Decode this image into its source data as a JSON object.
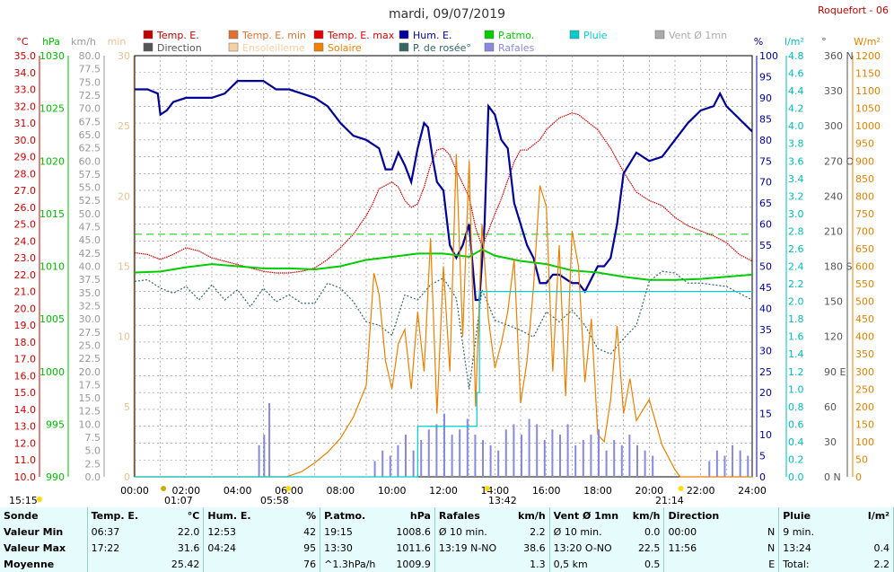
{
  "title": "mardi, 09/07/2019",
  "site": "Roquefort - 06",
  "legend": [
    {
      "label": "Temp. E.",
      "color": "#c00000"
    },
    {
      "label": "Temp. E. min",
      "color": "#e07030"
    },
    {
      "label": "Temp. E. max",
      "color": "#e00000"
    },
    {
      "label": "Hum. E.",
      "color": "#000099"
    },
    {
      "label": "P.atmo.",
      "color": "#00cc00"
    },
    {
      "label": "Pluie",
      "color": "#00cccc"
    },
    {
      "label": "Vent Ø 1mn",
      "color": "#aaaaaa"
    },
    {
      "label": "Direction",
      "color": "#555555"
    },
    {
      "label": "Ensoleilleme",
      "color": "#f5d0a0"
    },
    {
      "label": "Solaire",
      "color": "#f08000"
    },
    {
      "label": "P. de rosée°",
      "color": "#336666"
    },
    {
      "label": "Rafales",
      "color": "#8888dd"
    }
  ],
  "axis_headers": {
    "temp": "°C",
    "press": "hPa",
    "wind": "km/h",
    "min": "min",
    "hum": "%",
    "rain": "l/m²",
    "dir": "°",
    "solar": "W/m²"
  },
  "axes": {
    "temp": {
      "color": "#cc0000",
      "ticks": [
        "35.0",
        "34.0",
        "33.0",
        "32.0",
        "31.0",
        "30.0",
        "29.0",
        "28.0",
        "27.0",
        "26.0",
        "25.0",
        "24.0",
        "23.0",
        "22.0",
        "21.0",
        "20.0",
        "19.0",
        "18.0",
        "17.0",
        "16.0",
        "15.0",
        "14.0",
        "13.0",
        "12.0",
        "11.0",
        "10.0"
      ]
    },
    "press": {
      "color": "#00bb00",
      "ticks": [
        "1030",
        "1025",
        "1020",
        "1015",
        "1010",
        "1005",
        "1000",
        "995",
        "990"
      ]
    },
    "wind": {
      "color": "#999999",
      "ticks": [
        "80.0",
        "77.5",
        "75.0",
        "72.5",
        "70.0",
        "67.5",
        "65.0",
        "62.5",
        "60.0",
        "57.5",
        "55.0",
        "52.5",
        "50.0",
        "47.5",
        "45.0",
        "42.5",
        "40.0",
        "37.5",
        "35.0",
        "32.5",
        "30.0",
        "27.5",
        "25.0",
        "22.5",
        "20.0",
        "17.5",
        "15.0",
        "12.5",
        "10.0",
        "7.5",
        "5.0",
        "2.5",
        "0.0"
      ]
    },
    "min": {
      "color": "#e8c090",
      "ticks": [
        "30",
        "25",
        "20",
        "15",
        "10",
        "5",
        "0"
      ]
    },
    "hum": {
      "color": "#000099",
      "ticks": [
        "100",
        "95",
        "90",
        "85",
        "80",
        "75",
        "70",
        "65",
        "60",
        "55",
        "50",
        "45",
        "40",
        "35",
        "30",
        "25",
        "20",
        "15",
        "10",
        "5",
        "0"
      ]
    },
    "rain": {
      "color": "#00bbbb",
      "ticks": [
        "4.8",
        "4.6",
        "4.4",
        "4.2",
        "4.0",
        "3.8",
        "3.6",
        "3.4",
        "3.2",
        "3.0",
        "2.8",
        "2.6",
        "2.4",
        "2.2",
        "2.0",
        "1.8",
        "1.6",
        "1.4",
        "1.2",
        "1.0",
        "0.8",
        "0.6",
        "0.4",
        "0.2",
        "0.0"
      ]
    },
    "dir": {
      "color": "#555555",
      "ticks": [
        "360 N",
        "330",
        "300",
        "270 O",
        "240",
        "210",
        "180 S",
        "150",
        "120",
        "90 E",
        "60",
        "30",
        "0 N"
      ]
    },
    "solar": {
      "color": "#e08000",
      "ticks": [
        "1200",
        "1150",
        "1100",
        "1050",
        "1000",
        "950",
        "900",
        "850",
        "800",
        "750",
        "700",
        "650",
        "600",
        "550",
        "500",
        "450",
        "400",
        "350",
        "300",
        "250",
        "200",
        "150",
        "100",
        "50",
        "0"
      ]
    }
  },
  "x_ticks": [
    "00:00",
    "02:00",
    "04:00",
    "06:00",
    "08:00",
    "10:00",
    "12:00",
    "14:00",
    "16:00",
    "18:00",
    "20:00",
    "22:00",
    "24:00"
  ],
  "markers": {
    "clock": "15:15",
    "moonrise": "01:07",
    "sunrise": "05:58",
    "suntop": "13:42",
    "sunset": "21:14"
  },
  "chart_data": {
    "type": "line",
    "x_unit": "hour",
    "xlim": [
      0,
      24
    ],
    "series": [
      {
        "name": "Temp. E.",
        "unit": "°C",
        "ylim": [
          10,
          35
        ],
        "color": "#cc0000",
        "x": [
          0,
          0.5,
          1,
          1.5,
          2,
          2.5,
          3,
          3.5,
          4,
          4.5,
          5,
          5.5,
          6,
          6.5,
          7,
          7.5,
          8,
          8.5,
          9,
          9.25,
          9.5,
          9.75,
          10,
          10.25,
          10.5,
          10.75,
          11,
          11.25,
          11.5,
          11.75,
          12,
          12.25,
          12.5,
          12.75,
          13,
          13.25,
          13.5,
          13.75,
          14,
          14.25,
          14.5,
          14.75,
          15,
          15.25,
          15.5,
          15.75,
          16,
          16.5,
          17,
          17.25,
          17.5,
          18,
          18.5,
          19,
          19.5,
          20,
          20.5,
          21,
          21.5,
          22,
          22.5,
          23,
          23.5,
          24
        ],
        "y": [
          23.3,
          23.2,
          22.9,
          23.2,
          23.6,
          23.4,
          23.0,
          22.8,
          22.6,
          22.4,
          22.2,
          22.1,
          22.1,
          22.2,
          22.4,
          22.9,
          23.6,
          24.4,
          25.5,
          26.2,
          27.1,
          27.3,
          27.5,
          27.2,
          26.4,
          26.0,
          26.2,
          27.2,
          28.5,
          29.4,
          29.5,
          29.1,
          28.2,
          27.4,
          26.6,
          24.8,
          23.7,
          24.6,
          25.6,
          26.5,
          27.6,
          28.7,
          29.4,
          29.4,
          29.7,
          30.0,
          30.6,
          31.3,
          31.6,
          31.5,
          31.2,
          30.6,
          29.5,
          28.1,
          26.9,
          26.4,
          26.1,
          25.4,
          24.9,
          24.6,
          24.3,
          23.9,
          23.2,
          22.8
        ]
      },
      {
        "name": "Hum. E.",
        "unit": "%",
        "ylim": [
          0,
          100
        ],
        "color": "#000099",
        "x": [
          0,
          0.5,
          0.9,
          1.0,
          1.25,
          1.5,
          2,
          2.5,
          3,
          3.5,
          4,
          4.5,
          5,
          5.5,
          6,
          6.5,
          7,
          7.5,
          8,
          8.5,
          9,
          9.5,
          9.75,
          10,
          10.25,
          10.5,
          10.75,
          11,
          11.25,
          11.4,
          11.6,
          11.75,
          12,
          12.25,
          12.5,
          12.75,
          13,
          13.25,
          13.4,
          13.6,
          13.75,
          14,
          14.25,
          14.5,
          14.75,
          15,
          15.25,
          15.5,
          15.75,
          16,
          16.25,
          16.5,
          16.75,
          17,
          17.25,
          17.5,
          18,
          18.25,
          18.5,
          18.75,
          19,
          19.5,
          20,
          20.5,
          21,
          21.5,
          22,
          22.5,
          22.75,
          23,
          23.5,
          24
        ],
        "y": [
          92,
          92,
          91,
          86,
          87,
          89,
          90,
          90,
          90,
          91,
          94,
          94,
          94,
          92,
          92,
          91,
          90,
          88,
          84,
          81,
          80,
          78,
          73,
          73,
          77,
          74,
          70,
          78,
          84,
          83,
          75,
          70,
          68,
          55,
          52,
          55,
          60,
          42,
          42,
          60,
          88,
          86,
          80,
          78,
          65,
          60,
          55,
          52,
          46,
          46,
          48,
          48,
          47,
          46,
          46,
          44,
          50,
          50,
          52,
          60,
          72,
          77,
          75,
          76,
          80,
          84,
          87,
          88,
          91,
          88,
          85,
          82
        ]
      },
      {
        "name": "P.atmo.",
        "unit": "hPa",
        "ylim": [
          990,
          1030
        ],
        "color": "#00cc00",
        "x": [
          0,
          1,
          2,
          3,
          4,
          5,
          6,
          7,
          8,
          9,
          10,
          11,
          12,
          13,
          13.5,
          14,
          15,
          16,
          17,
          18,
          19,
          20,
          21,
          22,
          23,
          24
        ],
        "y": [
          1009.4,
          1009.5,
          1009.9,
          1010.2,
          1010.0,
          1009.8,
          1009.8,
          1009.7,
          1010.0,
          1010.6,
          1010.9,
          1011.2,
          1011.2,
          1010.9,
          1011.6,
          1011.0,
          1010.5,
          1010.2,
          1009.6,
          1009.4,
          1009.0,
          1008.7,
          1008.7,
          1008.8,
          1009.0,
          1009.2
        ]
      },
      {
        "name": "P. de rosée°",
        "unit": "°C",
        "ylim": [
          10,
          35
        ],
        "color": "#336666",
        "x": [
          0,
          0.5,
          1,
          1.5,
          2,
          2.5,
          3,
          3.5,
          4,
          4.5,
          5,
          5.5,
          6,
          6.5,
          7,
          7.5,
          8,
          8.5,
          9,
          9.5,
          10,
          10.5,
          11,
          11.5,
          12,
          12.5,
          13,
          13.5,
          14,
          14.5,
          15,
          15.5,
          16,
          16.5,
          17,
          17.5,
          18,
          18.5,
          19,
          19.5,
          20,
          20.5,
          21,
          21.5,
          22,
          22.5,
          23,
          23.5,
          24
        ],
        "y": [
          21.6,
          21.7,
          21.2,
          20.9,
          21.3,
          20.5,
          21.4,
          20.5,
          21.1,
          20.1,
          21.2,
          20.4,
          20.8,
          20.3,
          20.3,
          21.5,
          21.2,
          20.4,
          19.2,
          19.0,
          18.4,
          20.8,
          20.5,
          21.4,
          21.8,
          20.6,
          15.2,
          21.1,
          19.3,
          19.0,
          18.7,
          18.3,
          19.8,
          19.2,
          19.9,
          19.0,
          17.6,
          17.3,
          18.2,
          19.0,
          21.6,
          22.2,
          22.1,
          21.5,
          21.5,
          21.4,
          21.3,
          20.9,
          20.5
        ]
      },
      {
        "name": "Solaire",
        "unit": "W/m²",
        "ylim": [
          0,
          1200
        ],
        "color": "#e88000",
        "x": [
          0,
          5.9,
          6.5,
          7,
          7.5,
          8,
          8.5,
          9,
          9.3,
          9.5,
          9.75,
          10,
          10.25,
          10.5,
          10.75,
          11,
          11.25,
          11.5,
          11.75,
          12,
          12.25,
          12.5,
          12.75,
          13,
          13.25,
          13.5,
          13.75,
          14,
          14.25,
          14.5,
          14.75,
          15,
          15.25,
          15.5,
          15.75,
          16,
          16.25,
          16.5,
          16.75,
          17,
          17.25,
          17.5,
          17.75,
          18,
          18.25,
          18.5,
          18.75,
          19,
          19.25,
          19.5,
          19.75,
          20,
          20.5,
          21,
          21.2,
          24
        ],
        "y": [
          0,
          0,
          15,
          40,
          70,
          110,
          170,
          260,
          580,
          520,
          330,
          250,
          380,
          420,
          250,
          470,
          300,
          680,
          180,
          600,
          300,
          920,
          400,
          900,
          200,
          720,
          450,
          310,
          380,
          470,
          620,
          210,
          330,
          540,
          830,
          770,
          300,
          660,
          230,
          700,
          600,
          270,
          450,
          120,
          100,
          220,
          430,
          180,
          280,
          160,
          190,
          220,
          90,
          20,
          0,
          0
        ]
      },
      {
        "name": "Rafales",
        "unit": "km/h",
        "ylim": [
          0,
          80
        ],
        "color": "#8888dd",
        "type": "bar",
        "x": [
          4.8,
          5.0,
          5.2,
          9.3,
          9.6,
          9.9,
          10.2,
          10.5,
          10.8,
          11.1,
          11.4,
          11.7,
          12.0,
          12.3,
          12.6,
          12.9,
          13.2,
          13.5,
          13.8,
          14.1,
          14.4,
          14.7,
          15.0,
          15.3,
          15.6,
          15.9,
          16.2,
          16.5,
          16.8,
          17.1,
          17.4,
          17.7,
          18.0,
          18.3,
          18.6,
          18.9,
          19.2,
          19.5,
          19.8,
          20.1,
          22.3,
          22.6,
          22.9,
          23.2,
          23.5,
          23.8
        ],
        "y": [
          6,
          8,
          14,
          3,
          5,
          4,
          6,
          8,
          5,
          7,
          9,
          10,
          12,
          8,
          9,
          11,
          8,
          7,
          6,
          5,
          9,
          10,
          8,
          11,
          10,
          7,
          9,
          8,
          10,
          6,
          7,
          8,
          9,
          5,
          7,
          6,
          8,
          6,
          5,
          4,
          3,
          5,
          4,
          6,
          5,
          4
        ]
      },
      {
        "name": "Pluie",
        "unit": "l/m²",
        "ylim": [
          0,
          5
        ],
        "color": "#00cccc",
        "type": "step",
        "x": [
          0,
          10.9,
          11.0,
          13.2,
          13.3,
          13.4,
          24
        ],
        "y": [
          0,
          0.0,
          0.6,
          0.6,
          1.0,
          2.2,
          2.2
        ]
      }
    ]
  },
  "summary": {
    "headers": [
      {
        "label": "Sonde",
        "unit": ""
      },
      {
        "label": "Temp. E.",
        "unit": "°C"
      },
      {
        "label": "Hum. E.",
        "unit": "%"
      },
      {
        "label": "P.atmo.",
        "unit": "hPa"
      },
      {
        "label": "Rafales",
        "unit": "km/h"
      },
      {
        "label": "Vent Ø 1mn",
        "unit": "km/h"
      },
      {
        "label": "Direction",
        "unit": ""
      },
      {
        "label": "Pluie",
        "unit": "l/m²"
      }
    ],
    "rows": [
      {
        "label": "Valeur Min",
        "cells": [
          [
            "06:37",
            "22.0"
          ],
          [
            "12:53",
            "42"
          ],
          [
            "19:15",
            "1008.6"
          ],
          [
            "Ø 10 min.",
            "2.2"
          ],
          [
            "Ø 10 min.",
            "0.0"
          ],
          [
            "00:00",
            "N"
          ],
          [
            "9 min.",
            ""
          ]
        ]
      },
      {
        "label": "Valeur Max",
        "cells": [
          [
            "17:22",
            "31.6"
          ],
          [
            "04:24",
            "95"
          ],
          [
            "13:30",
            "1011.6"
          ],
          [
            "13:19 N-NO",
            "38.6"
          ],
          [
            "13:20 O-NO",
            "22.5"
          ],
          [
            "11:56",
            "N"
          ],
          [
            "13:24",
            "0.4"
          ]
        ]
      },
      {
        "label": "Moyenne",
        "cells": [
          [
            "",
            "25.42"
          ],
          [
            "",
            "76"
          ],
          [
            "^1.3hPa/h",
            "1009.9"
          ],
          [
            "",
            "1.3"
          ],
          [
            "0,5 km",
            "0.5"
          ],
          [
            "",
            "E"
          ],
          [
            "Total:",
            "2.2"
          ]
        ]
      }
    ]
  }
}
